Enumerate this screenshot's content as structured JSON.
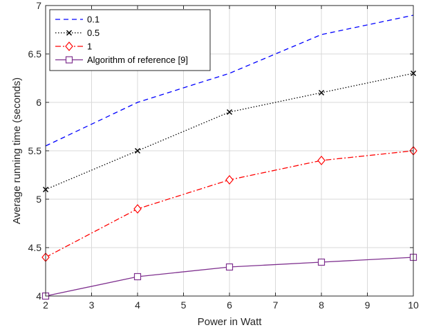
{
  "chart_data": {
    "type": "line",
    "xlabel": "Power in Watt",
    "ylabel": "Average running time (seconds)",
    "xlim": [
      2,
      10
    ],
    "ylim": [
      4,
      7
    ],
    "x_ticks": [
      2,
      3,
      4,
      5,
      6,
      7,
      8,
      9,
      10
    ],
    "y_ticks": [
      4,
      4.5,
      5,
      5.5,
      6,
      6.5,
      7
    ],
    "grid": true,
    "legend_position": "top-left",
    "x": [
      2,
      4,
      6,
      8,
      10
    ],
    "series": [
      {
        "name": "0.1",
        "values": [
          5.55,
          6.0,
          6.3,
          6.7,
          6.9
        ],
        "color": "#0000ff",
        "line": "dashed",
        "marker": "none"
      },
      {
        "name": "0.5",
        "values": [
          5.1,
          5.5,
          5.9,
          6.1,
          6.3
        ],
        "color": "#000000",
        "line": "dotted",
        "marker": "x"
      },
      {
        "name": "1",
        "values": [
          4.4,
          4.9,
          5.2,
          5.4,
          5.5
        ],
        "color": "#ff0000",
        "line": "dashdot",
        "marker": "diamond"
      },
      {
        "name": "Algorithm of reference [9]",
        "values": [
          4.0,
          4.2,
          4.3,
          4.35,
          4.4
        ],
        "color": "#7e2f8e",
        "line": "solid",
        "marker": "square"
      }
    ]
  }
}
